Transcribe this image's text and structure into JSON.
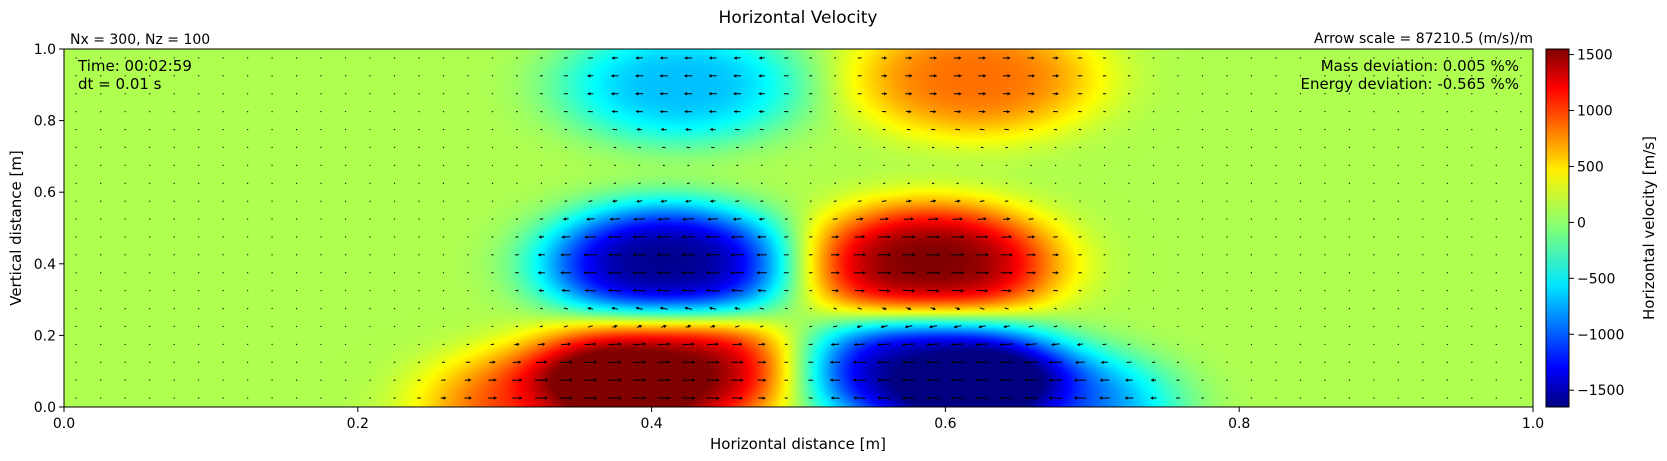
{
  "chart_data": {
    "type": "heatmap",
    "title": "Horizontal Velocity",
    "xlabel": "Horizontal distance [m]",
    "ylabel": "Vertical distance [m]",
    "xlim": [
      0.0,
      1.0
    ],
    "ylim": [
      0.0,
      1.0
    ],
    "x_ticks": [
      "0.0",
      "0.2",
      "0.4",
      "0.6",
      "0.8",
      "1.0"
    ],
    "y_ticks": [
      "0.0",
      "0.2",
      "0.4",
      "0.6",
      "0.8",
      "1.0"
    ],
    "colorbar": {
      "label": "Horizontal velocity [m/s]",
      "range": [
        -1650,
        1550
      ],
      "ticks": [
        "1500",
        "1000",
        "500",
        "0",
        "−500",
        "−1000",
        "−1500"
      ],
      "colormap": "jet"
    },
    "field_features": [
      {
        "x": 0.41,
        "z": 0.4,
        "value": -1600
      },
      {
        "x": 0.59,
        "z": 0.4,
        "value": 1550
      },
      {
        "x": 0.41,
        "z": 0.1,
        "value": 1550
      },
      {
        "x": 0.59,
        "z": 0.1,
        "value": -1600
      },
      {
        "x": 0.42,
        "z": 0.9,
        "value": -650
      },
      {
        "x": 0.62,
        "z": 0.92,
        "value": 800
      },
      {
        "x": 0.33,
        "z": 0.0,
        "value": 950
      },
      {
        "x": 0.67,
        "z": 0.0,
        "value": -900
      }
    ],
    "background_value": 100,
    "annotations": {
      "grid_size": "Nx = 300, Nz = 100",
      "arrow_scale": "Arrow scale = 87210.5 (m/s)/m",
      "time": "Time: 00:02:59",
      "dt": "dt = 0.01 s",
      "mass_deviation": "Mass deviation: 0.005 %%",
      "energy_deviation": "Energy deviation: -0.565 %%"
    }
  }
}
